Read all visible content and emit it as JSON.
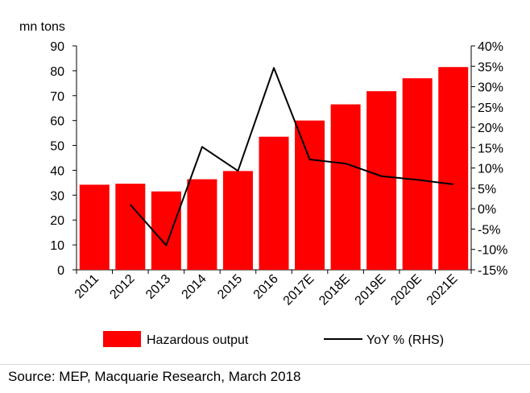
{
  "chart_data": {
    "type": "bar",
    "ylabel": "mn tons",
    "categories": [
      "2011",
      "2012",
      "2013",
      "2014",
      "2015",
      "2016",
      "2017E",
      "2018E",
      "2019E",
      "2020E",
      "2021E"
    ],
    "y_ticks": [
      "0",
      "10",
      "20",
      "30",
      "40",
      "50",
      "60",
      "70",
      "80",
      "90"
    ],
    "y2_ticks": [
      "-15%",
      "-10%",
      "-5%",
      "0%",
      "5%",
      "10%",
      "15%",
      "20%",
      "25%",
      "30%",
      "35%",
      "40%"
    ],
    "ylim": [
      0,
      90
    ],
    "y2lim": [
      -15,
      40
    ],
    "series": [
      {
        "name": "Hazardous output",
        "type": "bar",
        "axis": "left",
        "color": "#ff0000",
        "values": [
          34.2,
          34.6,
          31.5,
          36.4,
          39.7,
          53.5,
          60.0,
          66.5,
          71.8,
          77.0,
          81.5
        ]
      },
      {
        "name": "YoY % (RHS)",
        "type": "line",
        "axis": "right",
        "color": "#000000",
        "values": [
          null,
          1.0,
          -9.0,
          15.2,
          9.3,
          34.6,
          12.1,
          11.1,
          8.0,
          7.1,
          6.0
        ]
      }
    ],
    "legend_position": "bottom",
    "grid": false
  },
  "source": "Source: MEP,  Macquarie Research, March 2018"
}
